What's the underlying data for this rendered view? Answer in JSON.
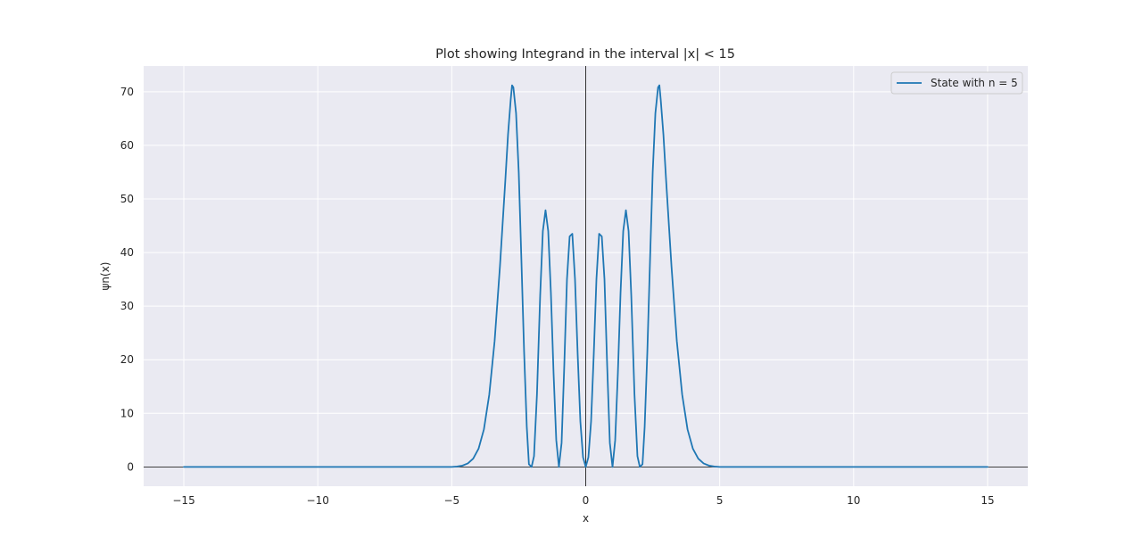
{
  "chart_data": {
    "type": "line",
    "title": "Plot showing Integrand in the interval |x| < 15",
    "xlabel": "x",
    "ylabel": "ψn(x)",
    "xlim": [
      -16.5,
      16.5
    ],
    "ylim": [
      -3.6,
      74.8
    ],
    "xticks": [
      -15,
      -10,
      -5,
      0,
      5,
      10,
      15
    ],
    "xtick_labels": [
      "−15",
      "−10",
      "−5",
      "0",
      "5",
      "10",
      "15"
    ],
    "yticks": [
      0,
      10,
      20,
      30,
      40,
      50,
      60,
      70
    ],
    "ytick_labels": [
      "0",
      "10",
      "20",
      "30",
      "40",
      "50",
      "60",
      "70"
    ],
    "grid": true,
    "legend_position": "top-right",
    "reference_lines": {
      "x": 0,
      "y": 0
    },
    "series": [
      {
        "name": "State with n = 5",
        "color": "#1f77b4",
        "points": [
          [
            -15,
            0
          ],
          [
            -5,
            0
          ],
          [
            -4.8,
            0.08
          ],
          [
            -4.6,
            0.25
          ],
          [
            -4.4,
            0.65
          ],
          [
            -4.2,
            1.55
          ],
          [
            -4.0,
            3.4
          ],
          [
            -3.8,
            7.0
          ],
          [
            -3.6,
            13.5
          ],
          [
            -3.4,
            23.5
          ],
          [
            -3.2,
            37.5
          ],
          [
            -3.0,
            53.5
          ],
          [
            -2.9,
            62.0
          ],
          [
            -2.8,
            68.5
          ],
          [
            -2.75,
            71.2
          ],
          [
            -2.7,
            70.8
          ],
          [
            -2.6,
            66.0
          ],
          [
            -2.5,
            55.0
          ],
          [
            -2.4,
            38.5
          ],
          [
            -2.3,
            21.5
          ],
          [
            -2.2,
            7.5
          ],
          [
            -2.12,
            0.5
          ],
          [
            -2.02,
            0.0
          ],
          [
            -1.93,
            2.0
          ],
          [
            -1.82,
            13.5
          ],
          [
            -1.7,
            32.0
          ],
          [
            -1.6,
            44.0
          ],
          [
            -1.5,
            47.9
          ],
          [
            -1.4,
            44.0
          ],
          [
            -1.3,
            32.5
          ],
          [
            -1.2,
            17.5
          ],
          [
            -1.1,
            5.0
          ],
          [
            -1.0,
            0.0
          ],
          [
            -0.9,
            4.5
          ],
          [
            -0.8,
            19.0
          ],
          [
            -0.7,
            35.0
          ],
          [
            -0.6,
            43.0
          ],
          [
            -0.5,
            43.5
          ],
          [
            -0.4,
            35.0
          ],
          [
            -0.3,
            21.0
          ],
          [
            -0.2,
            8.5
          ],
          [
            -0.1,
            1.8
          ],
          [
            0,
            0
          ],
          [
            0.1,
            1.8
          ],
          [
            0.2,
            8.5
          ],
          [
            0.3,
            21.0
          ],
          [
            0.4,
            35.0
          ],
          [
            0.5,
            43.5
          ],
          [
            0.6,
            43.0
          ],
          [
            0.7,
            35.0
          ],
          [
            0.8,
            19.0
          ],
          [
            0.9,
            4.5
          ],
          [
            1.0,
            0.0
          ],
          [
            1.1,
            5.0
          ],
          [
            1.2,
            17.5
          ],
          [
            1.3,
            32.5
          ],
          [
            1.4,
            44.0
          ],
          [
            1.5,
            47.9
          ],
          [
            1.6,
            44.0
          ],
          [
            1.7,
            32.0
          ],
          [
            1.82,
            13.5
          ],
          [
            1.93,
            2.0
          ],
          [
            2.02,
            0.0
          ],
          [
            2.12,
            0.5
          ],
          [
            2.2,
            7.5
          ],
          [
            2.3,
            21.5
          ],
          [
            2.4,
            38.5
          ],
          [
            2.5,
            55.0
          ],
          [
            2.6,
            66.0
          ],
          [
            2.7,
            70.8
          ],
          [
            2.75,
            71.2
          ],
          [
            2.8,
            68.5
          ],
          [
            2.9,
            62.0
          ],
          [
            3.0,
            53.5
          ],
          [
            3.2,
            37.5
          ],
          [
            3.4,
            23.5
          ],
          [
            3.6,
            13.5
          ],
          [
            3.8,
            7.0
          ],
          [
            4.0,
            3.4
          ],
          [
            4.2,
            1.55
          ],
          [
            4.4,
            0.65
          ],
          [
            4.6,
            0.25
          ],
          [
            4.8,
            0.08
          ],
          [
            5,
            0
          ],
          [
            15,
            0
          ]
        ]
      }
    ]
  }
}
